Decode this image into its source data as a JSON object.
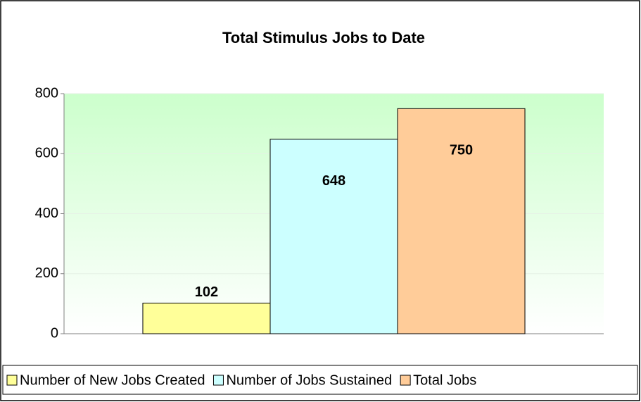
{
  "chart_data": {
    "type": "bar",
    "title": "Total Stimulus Jobs to Date",
    "categories": [
      null
    ],
    "series": [
      {
        "name": "Number of New Jobs Created",
        "color": "#ffff99",
        "values": [
          102
        ]
      },
      {
        "name": "Number of Jobs Sustained",
        "color": "#ccffff",
        "values": [
          648
        ]
      },
      {
        "name": "Total Jobs",
        "color": "#ffcc99",
        "values": [
          750
        ]
      }
    ],
    "ylim": [
      0,
      800
    ],
    "yticks": [
      0,
      200,
      400,
      600,
      800
    ],
    "grid": true,
    "legend": "bottom"
  }
}
